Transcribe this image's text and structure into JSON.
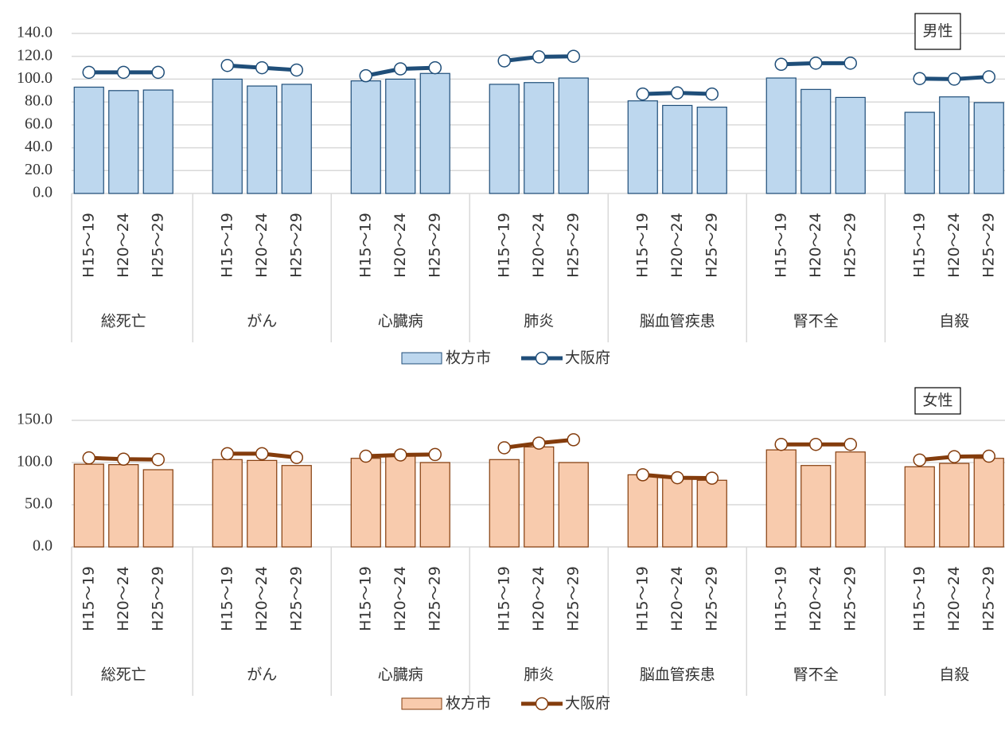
{
  "chart_data": [
    {
      "type": "bar_line",
      "annotation": "男性",
      "groups": [
        "総死亡",
        "がん",
        "心臓病",
        "肺炎",
        "脳血管疾患",
        "腎不全",
        "自殺"
      ],
      "categories": [
        "H15～19",
        "H20～24",
        "H25～29",
        "H15～19",
        "H20～24",
        "H25～29",
        "H15～19",
        "H20～24",
        "H25～29",
        "H15～19",
        "H20～24",
        "H25～29",
        "H15～19",
        "H20～24",
        "H25～29",
        "H15～19",
        "H20～24",
        "H25～29",
        "H15～19",
        "H20～24",
        "H25～29"
      ],
      "series": [
        {
          "name": "枚方市",
          "kind": "bar",
          "color": "#bdd7ee",
          "edge": "#1f4e79",
          "values": [
            93,
            90,
            90.5,
            100,
            94,
            95.5,
            98.5,
            100,
            105,
            95.5,
            97,
            101,
            81,
            77,
            75.5,
            101,
            91,
            84,
            71,
            84.5,
            79.5
          ]
        },
        {
          "name": "大阪府",
          "kind": "line",
          "color": "#1f4e79",
          "values": [
            106,
            106,
            106,
            112,
            110,
            108,
            103,
            109,
            110,
            116,
            119.5,
            120,
            87,
            88,
            87,
            113,
            114,
            114,
            100.5,
            100,
            102
          ]
        }
      ],
      "ylim": [
        0,
        140
      ],
      "yticks": [
        {
          "value": 0,
          "label": "0.0"
        },
        {
          "value": 20,
          "label": "20.0"
        },
        {
          "value": 40,
          "label": "40.0"
        },
        {
          "value": 60,
          "label": "60.0"
        },
        {
          "value": 80,
          "label": "80.0"
        },
        {
          "value": 100,
          "label": "100.0"
        },
        {
          "value": 120,
          "label": "120.0"
        },
        {
          "value": 140,
          "label": "140.0"
        }
      ],
      "grid": true
    },
    {
      "type": "bar_line",
      "annotation": "女性",
      "groups": [
        "総死亡",
        "がん",
        "心臓病",
        "肺炎",
        "脳血管疾患",
        "腎不全",
        "自殺"
      ],
      "categories": [
        "H15～19",
        "H20～24",
        "H25～29",
        "H15～19",
        "H20～24",
        "H25～29",
        "H15～19",
        "H20～24",
        "H25～29",
        "H15～19",
        "H20～24",
        "H25～29",
        "H15～19",
        "H20～24",
        "H25～29",
        "H15～19",
        "H20～24",
        "H25～29",
        "H15～19",
        "H20～24",
        "H25～29"
      ],
      "series": [
        {
          "name": "枚方市",
          "kind": "bar",
          "color": "#f8cbad",
          "edge": "#843c0c",
          "values": [
            98,
            97.5,
            91.5,
            103.5,
            102.5,
            96.5,
            105,
            108,
            100,
            103.5,
            118.5,
            100,
            85.5,
            83,
            79,
            115,
            96.5,
            112.5,
            95,
            99,
            105
          ]
        },
        {
          "name": "大阪府",
          "kind": "line",
          "color": "#843c0c",
          "values": [
            105.5,
            104,
            103.5,
            110.5,
            110.5,
            106,
            107.5,
            109,
            109.5,
            117.5,
            123,
            127,
            85.5,
            82,
            81.5,
            121.5,
            121.5,
            121.5,
            103,
            107,
            107.5
          ]
        }
      ],
      "ylim": [
        0,
        150
      ],
      "yticks": [
        {
          "value": 0,
          "label": "0.0"
        },
        {
          "value": 50,
          "label": "50.0"
        },
        {
          "value": 100,
          "label": "100.0"
        },
        {
          "value": 150,
          "label": "150.0"
        }
      ],
      "grid": true
    }
  ]
}
